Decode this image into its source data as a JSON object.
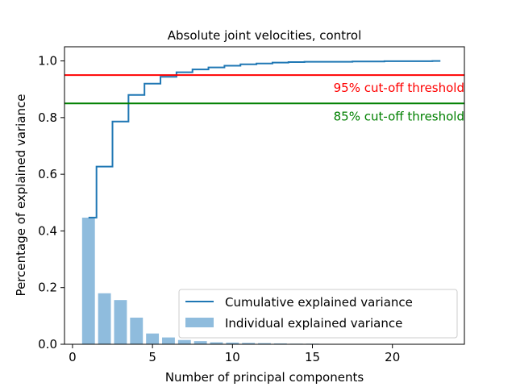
{
  "chart_data": {
    "type": "bar",
    "title": "Absolute joint velocities, control",
    "xlabel": "Number of principal components",
    "ylabel": "Percentage of explained variance",
    "xlim": [
      -0.5,
      24.5
    ],
    "ylim": [
      0,
      1.05
    ],
    "xticks": [
      0,
      5,
      10,
      15,
      20
    ],
    "yticks": [
      0.0,
      0.2,
      0.4,
      0.6,
      0.8,
      1.0
    ],
    "ytick_labels": [
      "0.0",
      "0.2",
      "0.4",
      "0.6",
      "0.8",
      "1.0"
    ],
    "xtick_labels": [
      "0",
      "5",
      "10",
      "15",
      "20"
    ],
    "grid": false,
    "legend_position": "lower-right",
    "series": [
      {
        "name": "Individual explained variance",
        "kind": "bar",
        "color": "#8fbcdd",
        "x": [
          1,
          2,
          3,
          4,
          5,
          6,
          7,
          8,
          9,
          10,
          11,
          12,
          13,
          14,
          15,
          16,
          17,
          18,
          19,
          20,
          21,
          22,
          23
        ],
        "values": [
          0.447,
          0.18,
          0.156,
          0.094,
          0.038,
          0.024,
          0.015,
          0.011,
          0.007,
          0.006,
          0.005,
          0.004,
          0.003,
          0.002,
          0.002,
          0.001,
          0.001,
          0.001,
          0.001,
          0.001,
          0.001,
          0.001,
          0.001
        ]
      },
      {
        "name": "Cumulative explained variance",
        "kind": "step",
        "color": "#1f77b4",
        "x": [
          1,
          2,
          3,
          4,
          5,
          6,
          7,
          8,
          9,
          10,
          11,
          12,
          13,
          14,
          15,
          16,
          17,
          18,
          19,
          20,
          21,
          22,
          23
        ],
        "values": [
          0.447,
          0.627,
          0.786,
          0.88,
          0.92,
          0.944,
          0.96,
          0.97,
          0.977,
          0.983,
          0.988,
          0.991,
          0.994,
          0.996,
          0.997,
          0.997,
          0.997,
          0.998,
          0.998,
          0.999,
          0.999,
          0.999,
          1.0
        ]
      }
    ],
    "thresholds": [
      {
        "y": 0.95,
        "label": "95% cut-off threshold",
        "color": "#ff0000"
      },
      {
        "y": 0.85,
        "label": "85% cut-off threshold",
        "color": "#008000"
      }
    ]
  }
}
